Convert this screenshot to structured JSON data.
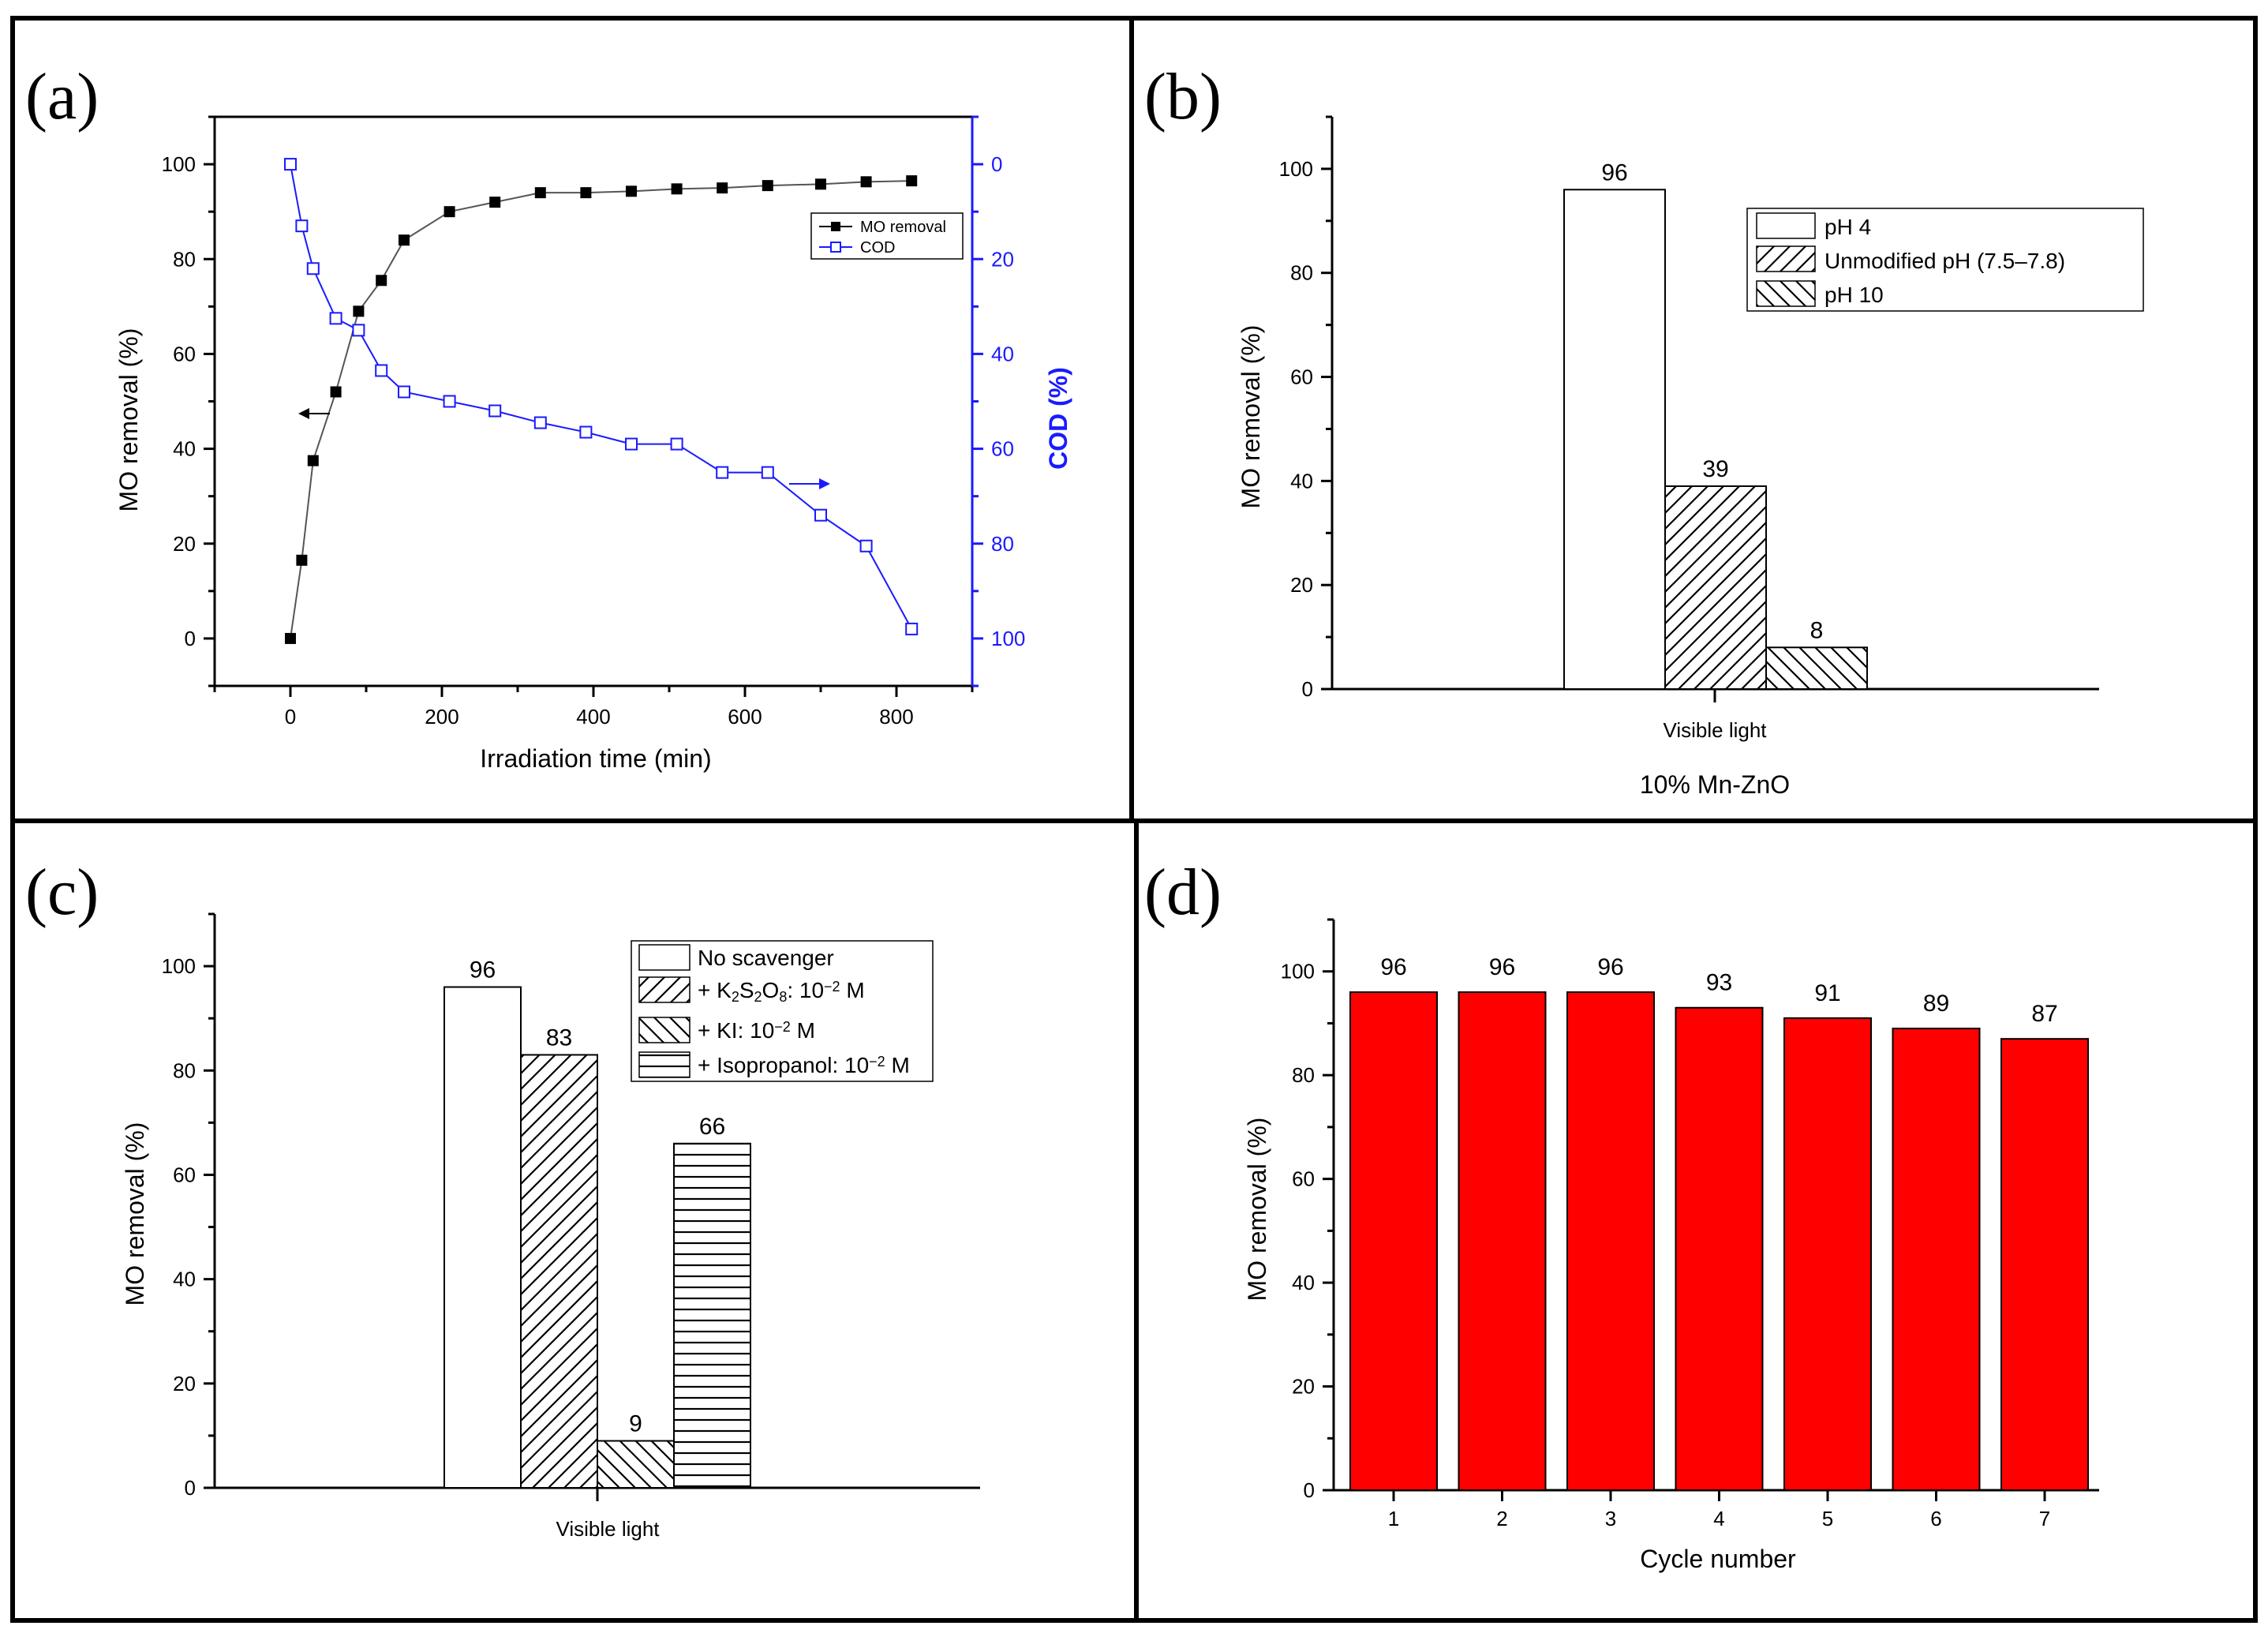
{
  "figure": {
    "panel_labels": [
      "(a)",
      "(b)",
      "(c)",
      "(d)"
    ]
  },
  "colors": {
    "mo_series": "#000000",
    "cod_series": "#1a1aff",
    "cycle_bars": "#ff0000"
  },
  "chart_data": [
    {
      "panel": "(a)",
      "type": "line",
      "xlabel": "Irradiation time (min)",
      "ylabel": "MO removal (%)",
      "y2label": "COD (%)",
      "xlim": [
        -100,
        900
      ],
      "ylim": [
        -10,
        110
      ],
      "y2lim": [
        -10,
        110
      ],
      "y2_inverted": true,
      "xticks": [
        "0",
        "200",
        "400",
        "600",
        "800"
      ],
      "yticks": [
        "0",
        "20",
        "40",
        "60",
        "80",
        "100"
      ],
      "y2ticks": [
        "0",
        "20",
        "40",
        "60",
        "80",
        "100"
      ],
      "legend_position": "top-right",
      "series": [
        {
          "name": "MO removal",
          "marker": "filled-square",
          "x": [
            0,
            15,
            30,
            60,
            90,
            120,
            150,
            210,
            270,
            330,
            390,
            450,
            510,
            570,
            630,
            700,
            760,
            820
          ],
          "values": [
            0,
            16.5,
            37.5,
            52,
            69,
            75.5,
            84,
            90,
            92,
            94,
            94,
            94.3,
            94.8,
            95,
            95.5,
            95.8,
            96.3,
            96.5
          ]
        },
        {
          "name": "COD",
          "marker": "open-square",
          "axis": "right",
          "x": [
            0,
            15,
            30,
            60,
            90,
            120,
            150,
            210,
            270,
            330,
            390,
            450,
            510,
            570,
            630,
            700,
            760,
            820
          ],
          "values": [
            0,
            13,
            22,
            32.5,
            35,
            43.5,
            48,
            50,
            52,
            54.5,
            56.5,
            59,
            59,
            65,
            65,
            74,
            80.5,
            98
          ]
        }
      ],
      "annotations": [
        "left arrow on MO removal curve",
        "right arrow on COD curve"
      ]
    },
    {
      "panel": "(b)",
      "type": "bar",
      "xlabel": "10% Mn-ZnO",
      "ylabel": "MO removal (%)",
      "categories": [
        "Visible light"
      ],
      "ylim": [
        0,
        110
      ],
      "yticks": [
        "0",
        "20",
        "40",
        "60",
        "80",
        "100"
      ],
      "legend_position": "top-right",
      "series": [
        {
          "name": "pH 4",
          "pattern": "none",
          "values": [
            96
          ],
          "label": "96"
        },
        {
          "name": "Unmodified pH (7.5–7.8)",
          "pattern": "forward-hatch",
          "values": [
            39
          ],
          "label": "39"
        },
        {
          "name": "pH 10",
          "pattern": "back-hatch",
          "values": [
            8
          ],
          "label": "8"
        }
      ]
    },
    {
      "panel": "(c)",
      "type": "bar",
      "xlabel": "",
      "ylabel": "MO removal (%)",
      "categories": [
        "Visible light"
      ],
      "ylim": [
        0,
        110
      ],
      "yticks": [
        "0",
        "20",
        "40",
        "60",
        "80",
        "100"
      ],
      "legend_position": "top-right",
      "legend_entries": [
        {
          "parts": [
            [
              "No scavenger",
              "n"
            ]
          ]
        },
        {
          "parts": [
            [
              "+ K",
              "n"
            ],
            [
              "2",
              "sub"
            ],
            [
              "S",
              "n"
            ],
            [
              "2",
              "sub"
            ],
            [
              "O",
              "n"
            ],
            [
              "8",
              "sub"
            ],
            [
              ": 10",
              "n"
            ],
            [
              "−2",
              "sup"
            ],
            [
              " M",
              "n"
            ]
          ]
        },
        {
          "parts": [
            [
              "+ KI: 10",
              "n"
            ],
            [
              "−2",
              "sup"
            ],
            [
              " M",
              "n"
            ]
          ]
        },
        {
          "parts": [
            [
              "+ Isopropanol: 10",
              "n"
            ],
            [
              "−2",
              "sup"
            ],
            [
              " M",
              "n"
            ]
          ]
        }
      ],
      "series": [
        {
          "name": "No scavenger",
          "pattern": "none",
          "values": [
            96
          ],
          "label": "96"
        },
        {
          "name": "+ K2S2O8: 10-2 M",
          "pattern": "forward-hatch",
          "values": [
            83
          ],
          "label": "83"
        },
        {
          "name": "+ KI: 10-2 M",
          "pattern": "back-hatch",
          "values": [
            9
          ],
          "label": "9"
        },
        {
          "name": "+ Isopropanol: 10-2 M",
          "pattern": "horizontal",
          "values": [
            66
          ],
          "label": "66"
        }
      ]
    },
    {
      "panel": "(d)",
      "type": "bar",
      "xlabel": "Cycle number",
      "ylabel": "MO removal (%)",
      "categories": [
        "1",
        "2",
        "3",
        "4",
        "5",
        "6",
        "7"
      ],
      "values": [
        96,
        96,
        96,
        93,
        91,
        89,
        87
      ],
      "labels": [
        "96",
        "96",
        "96",
        "93",
        "91",
        "89",
        "87"
      ],
      "ylim": [
        0,
        110
      ],
      "yticks": [
        "0",
        "20",
        "40",
        "60",
        "80",
        "100"
      ]
    }
  ]
}
